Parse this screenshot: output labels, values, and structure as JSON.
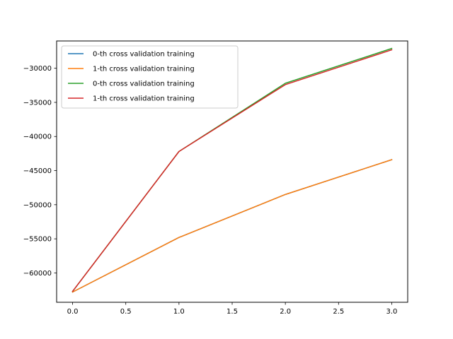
{
  "chart_data": {
    "type": "line",
    "title": "",
    "xlabel": "",
    "ylabel": "",
    "x": [
      0,
      1,
      2,
      3
    ],
    "xlim": [
      -0.15,
      3.15
    ],
    "ylim": [
      -64300,
      -26000
    ],
    "xticks": [
      0.0,
      0.5,
      1.0,
      1.5,
      2.0,
      2.5,
      3.0
    ],
    "xtick_labels": [
      "0.0",
      "0.5",
      "1.0",
      "1.5",
      "2.0",
      "2.5",
      "3.0"
    ],
    "yticks": [
      -60000,
      -55000,
      -50000,
      -45000,
      -40000,
      -35000,
      -30000
    ],
    "ytick_labels": [
      "−60000",
      "−55000",
      "−50000",
      "−45000",
      "−40000",
      "−35000",
      "−30000"
    ],
    "grid": false,
    "legend_position": "top-left",
    "series": [
      {
        "name": "0-th cross validation training",
        "color": "#1f77b4",
        "values": [
          -62800,
          -54800,
          -48500,
          -43400
        ]
      },
      {
        "name": "1-th cross validation training",
        "color": "#ff7f0e",
        "values": [
          -62800,
          -54800,
          -48500,
          -43400
        ]
      },
      {
        "name": "0-th cross validation training",
        "color": "#2ca02c",
        "values": [
          -62700,
          -42200,
          -32200,
          -27100
        ]
      },
      {
        "name": "1-th cross validation training",
        "color": "#d62728",
        "values": [
          -62700,
          -42200,
          -32400,
          -27300
        ]
      }
    ]
  }
}
